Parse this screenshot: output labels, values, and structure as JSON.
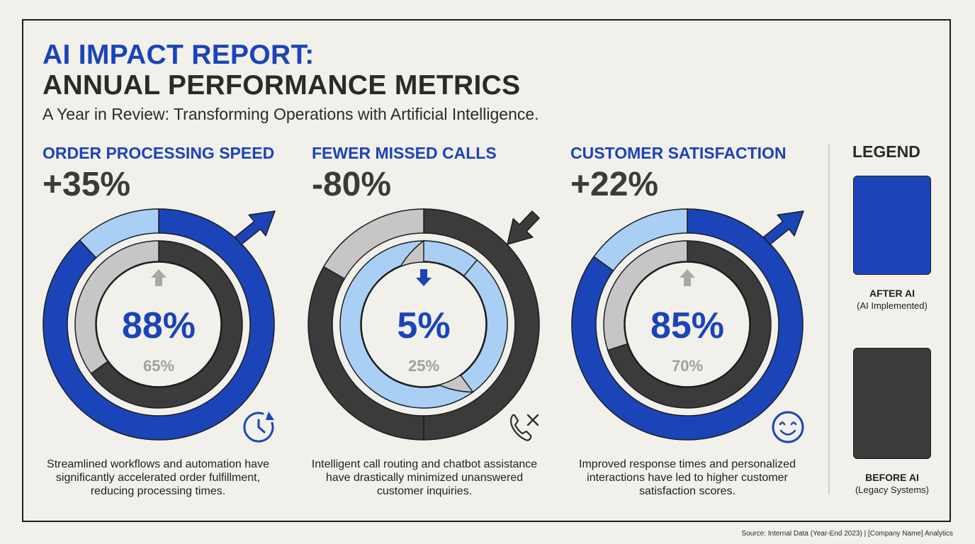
{
  "header": {
    "title_line1": "AI IMPACT REPORT:",
    "title_line2": "ANNUAL PERFORMANCE METRICS",
    "subtitle": "A Year in Review: Transforming Operations with Artificial Intelligence."
  },
  "colors": {
    "after_ai": "#1b44b8",
    "before_ai": "#3b3b3b",
    "highlight_after": "#a9cff5",
    "highlight_before": "#c6c6c6",
    "background": "#f1f0eb"
  },
  "chart_data": [
    {
      "type": "donut",
      "title": "ORDER PROCESSING SPEED",
      "change": "+35%",
      "series": [
        {
          "name": "AFTER AI",
          "value": 88,
          "label": "88%"
        },
        {
          "name": "BEFORE AI",
          "value": 65,
          "label": "65%"
        }
      ],
      "trend": "up",
      "icon": "clock-icon",
      "description": "Streamlined workflows and automation have significantly accelerated order fulfillment, reducing processing times."
    },
    {
      "type": "donut",
      "title": "FEWER MISSED CALLS",
      "change": "-80%",
      "series": [
        {
          "name": "AFTER AI",
          "value": 5,
          "label": "5%"
        },
        {
          "name": "BEFORE AI",
          "value": 25,
          "label": "25%"
        }
      ],
      "trend": "down",
      "icon": "missed-call-icon",
      "description": "Intelligent call routing and chatbot assistance have drastically minimized unanswered customer inquiries."
    },
    {
      "type": "donut",
      "title": "CUSTOMER SATISFACTION",
      "change": "+22%",
      "series": [
        {
          "name": "AFTER AI",
          "value": 85,
          "label": "85%"
        },
        {
          "name": "BEFORE AI",
          "value": 70,
          "label": "70%"
        }
      ],
      "trend": "up",
      "icon": "smiley-icon",
      "description": "Improved response times and personalized interactions have led to higher customer satisfaction scores."
    }
  ],
  "legend": {
    "title": "LEGEND",
    "items": [
      {
        "label": "AFTER AI",
        "sub": "(AI Implemented)",
        "color": "#1b44b8"
      },
      {
        "label": "BEFORE AI",
        "sub": "(Legacy Systems)",
        "color": "#3b3b3b"
      }
    ]
  },
  "source": "Source: Internal Data (Year-End 2023) | [Company Name] Analytics"
}
